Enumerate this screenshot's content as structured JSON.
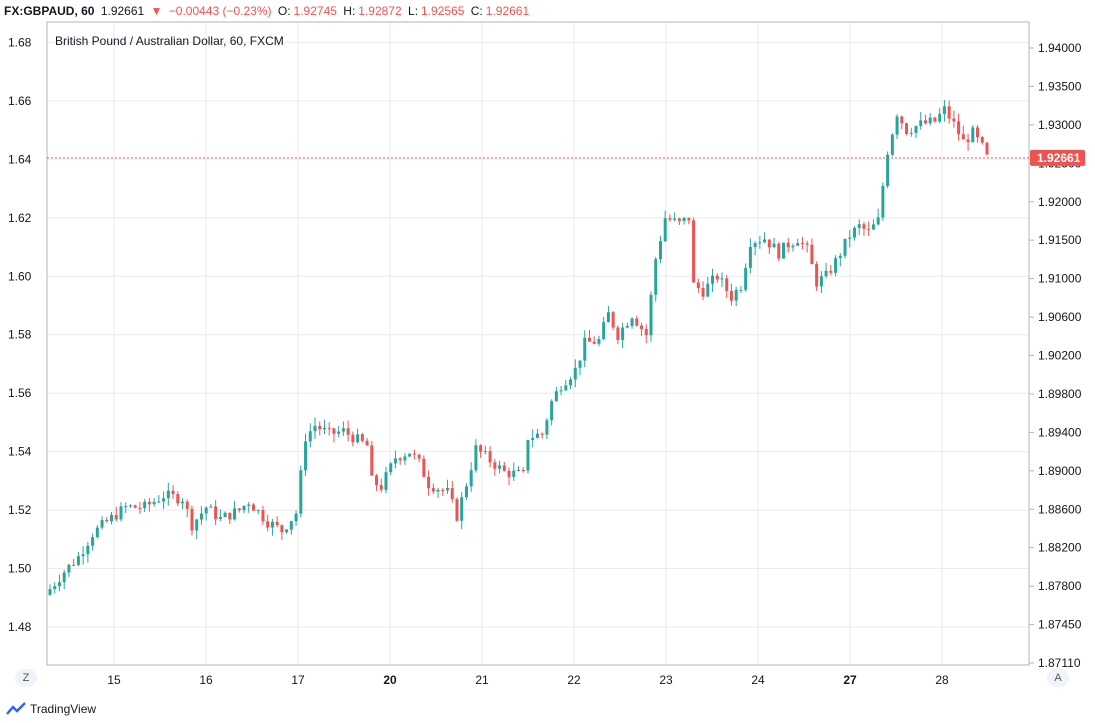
{
  "header": {
    "symbol": "FX:GBPAUD, 60",
    "price": "1.92661",
    "change": "−0.00443 (−0.23%)",
    "open_label": "O:",
    "open": "1.92745",
    "high_label": "H:",
    "high": "1.92872",
    "low_label": "L:",
    "low": "1.92565",
    "close_label": "C:",
    "close": "1.92661"
  },
  "footer": {
    "brand": "TradingView",
    "left_button": "Z",
    "right_button": "A"
  },
  "colors": {
    "up": "#26a69a",
    "down": "#ef5350",
    "grid": "#e9ebf0",
    "axis": "#b2b5be"
  },
  "chart_data": {
    "type": "candlestick",
    "title": "British Pound / Australian Dollar, 60, FXCM",
    "x_ticks": [
      {
        "label": "15",
        "bold": false
      },
      {
        "label": "16",
        "bold": false
      },
      {
        "label": "17",
        "bold": false
      },
      {
        "label": "20",
        "bold": true
      },
      {
        "label": "21",
        "bold": false
      },
      {
        "label": "22",
        "bold": false
      },
      {
        "label": "23",
        "bold": false
      },
      {
        "label": "24",
        "bold": false
      },
      {
        "label": "27",
        "bold": true
      },
      {
        "label": "28",
        "bold": false
      }
    ],
    "left_axis": {
      "ticks": [
        "1.68",
        "1.66",
        "1.64",
        "1.62",
        "1.60",
        "1.58",
        "1.56",
        "1.54",
        "1.52",
        "1.50",
        "1.48"
      ],
      "range": [
        1.467,
        1.687
      ]
    },
    "right_axis": {
      "ticks": [
        "1.94000",
        "1.93500",
        "1.93000",
        "1.92500",
        "1.92000",
        "1.91500",
        "1.91000",
        "1.90600",
        "1.90200",
        "1.89800",
        "1.89400",
        "1.89000",
        "1.88600",
        "1.88200",
        "1.87800",
        "1.87450",
        "1.87110"
      ]
    },
    "last_price": {
      "label": "1.92661",
      "left_value": 1.6405
    },
    "series": {
      "left_scale_path": [
        [
          0,
          1.493
        ],
        [
          3,
          1.499
        ],
        [
          6,
          1.504
        ],
        [
          9,
          1.512
        ],
        [
          12,
          1.516
        ],
        [
          16,
          1.521
        ],
        [
          20,
          1.521
        ],
        [
          24,
          1.525
        ],
        [
          28,
          1.524
        ],
        [
          30,
          1.515
        ],
        [
          33,
          1.521
        ],
        [
          36,
          1.517
        ],
        [
          40,
          1.52
        ],
        [
          42,
          1.523
        ],
        [
          46,
          1.516
        ],
        [
          49,
          1.513
        ],
        [
          52,
          1.519
        ],
        [
          54,
          1.545
        ],
        [
          56,
          1.549
        ],
        [
          59,
          1.546
        ],
        [
          62,
          1.547
        ],
        [
          64,
          1.545
        ],
        [
          67,
          1.542
        ],
        [
          68,
          1.53
        ],
        [
          70,
          1.528
        ],
        [
          73,
          1.538
        ],
        [
          76,
          1.54
        ],
        [
          78,
          1.536
        ],
        [
          80,
          1.529
        ],
        [
          84,
          1.526
        ],
        [
          86,
          1.518
        ],
        [
          88,
          1.529
        ],
        [
          90,
          1.541
        ],
        [
          93,
          1.537
        ],
        [
          96,
          1.533
        ],
        [
          100,
          1.532
        ],
        [
          101,
          1.545
        ],
        [
          104,
          1.546
        ],
        [
          106,
          1.557
        ],
        [
          108,
          1.563
        ],
        [
          111,
          1.568
        ],
        [
          113,
          1.577
        ],
        [
          116,
          1.578
        ],
        [
          118,
          1.587
        ],
        [
          120,
          1.58
        ],
        [
          123,
          1.587
        ],
        [
          126,
          1.58
        ],
        [
          128,
          1.606
        ],
        [
          130,
          1.62
        ],
        [
          133,
          1.618
        ],
        [
          135,
          1.62
        ],
        [
          136,
          1.597
        ],
        [
          138,
          1.595
        ],
        [
          141,
          1.6
        ],
        [
          144,
          1.593
        ],
        [
          146,
          1.597
        ],
        [
          148,
          1.612
        ],
        [
          151,
          1.613
        ],
        [
          154,
          1.608
        ],
        [
          156,
          1.611
        ],
        [
          158,
          1.613
        ],
        [
          160,
          1.609
        ],
        [
          162,
          1.598
        ],
        [
          164,
          1.6
        ],
        [
          166,
          1.605
        ],
        [
          169,
          1.614
        ],
        [
          171,
          1.617
        ],
        [
          173,
          1.615
        ],
        [
          175,
          1.619
        ],
        [
          176,
          1.631
        ],
        [
          177,
          1.643
        ],
        [
          179,
          1.656
        ],
        [
          181,
          1.65
        ],
        [
          184,
          1.652
        ],
        [
          187,
          1.653
        ],
        [
          189,
          1.657
        ],
        [
          191,
          1.652
        ],
        [
          193,
          1.646
        ],
        [
          195,
          1.649
        ],
        [
          197,
          1.644
        ],
        [
          198,
          1.6405
        ]
      ]
    }
  }
}
